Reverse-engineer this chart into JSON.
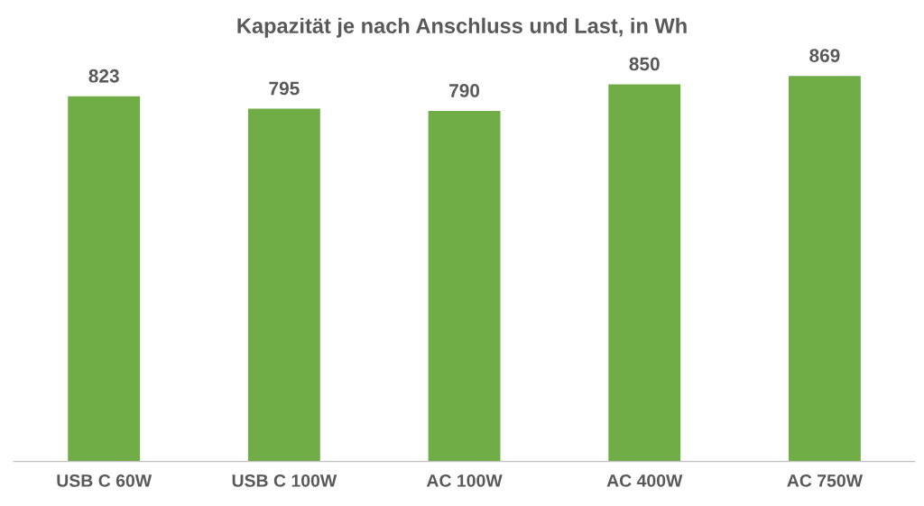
{
  "chart_data": {
    "type": "bar",
    "title": "Kapazität je nach Anschluss und Last, in Wh",
    "categories": [
      "USB C 60W",
      "USB C 100W",
      "AC 100W",
      "AC 400W",
      "AC 750W"
    ],
    "values": [
      823,
      795,
      790,
      850,
      869
    ],
    "color": "#70ad47",
    "data_labels": true
  }
}
